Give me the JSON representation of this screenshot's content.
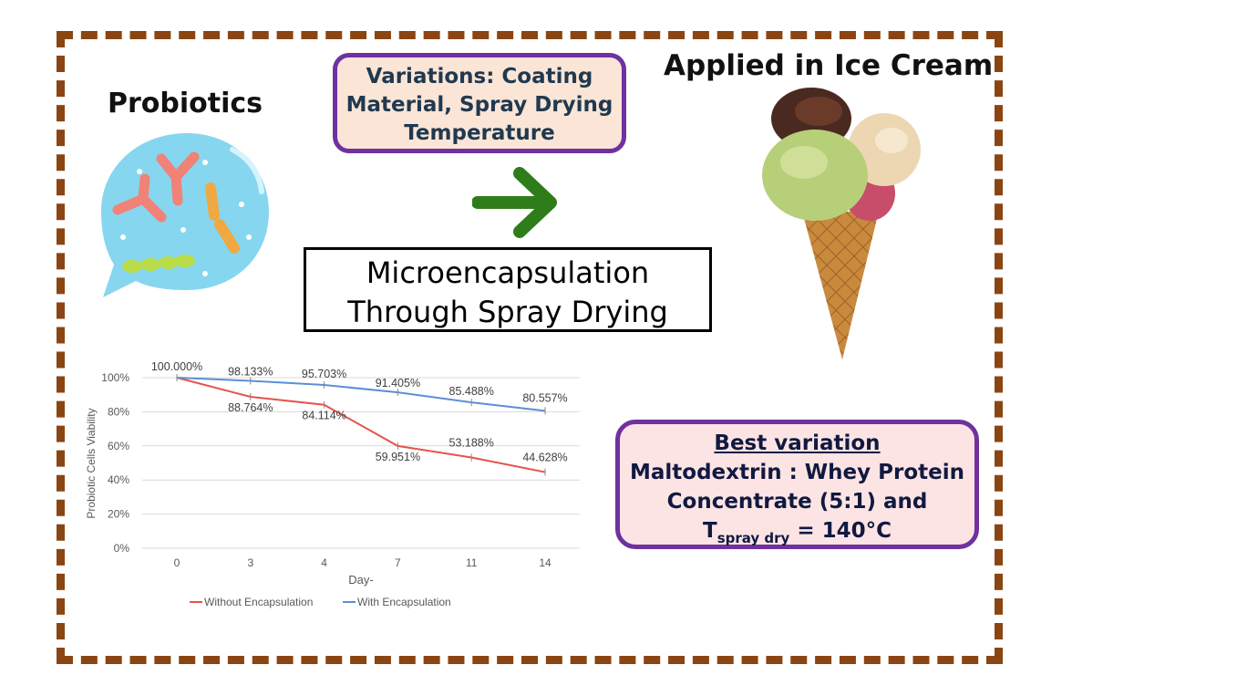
{
  "probiotics_title": "Probiotics",
  "icecream_title": "Applied in Ice Cream",
  "variations_lines": [
    "Variations: Coating",
    "Material, Spray Drying",
    "Temperature"
  ],
  "micro_lines": [
    "Microencapsulation",
    "Through Spray Drying"
  ],
  "best": {
    "heading": "Best variation",
    "line1": "Maltodextrin : Whey Protein",
    "line2": "Concentrate (5:1) and",
    "t_main": "T",
    "t_sub": "spray dry",
    "t_rest": " = 140°C"
  },
  "colors": {
    "frame": "#8a4513",
    "box_border": "#7031a0",
    "arrow": "#2e7d1a",
    "series_without": "#e5534b",
    "series_with": "#5b8fd6"
  },
  "icons": [
    "bacteria-bubble-icon",
    "right-arrow-icon",
    "ice-cream-cone-icon"
  ],
  "chart_data": {
    "type": "line",
    "categories": [
      "0",
      "3",
      "4",
      "7",
      "11",
      "14"
    ],
    "xlabel": "Day-",
    "ylabel": "Probiotic Cells Viability",
    "ylim": [
      0,
      100
    ],
    "yticks": [
      "0%",
      "20%",
      "40%",
      "60%",
      "80%",
      "100%"
    ],
    "legend_position": "bottom",
    "grid": true,
    "series": [
      {
        "name": "Without Encapsulation",
        "values": [
          100.0,
          88.764,
          84.114,
          59.951,
          53.188,
          44.628
        ],
        "labels": [
          "100.000%",
          "88.764%",
          "84.114%",
          "59.951%",
          "53.188%",
          "44.628%"
        ]
      },
      {
        "name": "With Encapsulation",
        "values": [
          100.0,
          98.133,
          95.703,
          91.405,
          85.488,
          80.557
        ],
        "labels": [
          "100.000%",
          "98.133%",
          "95.703%",
          "91.405%",
          "85.488%",
          "80.557%"
        ]
      }
    ]
  }
}
